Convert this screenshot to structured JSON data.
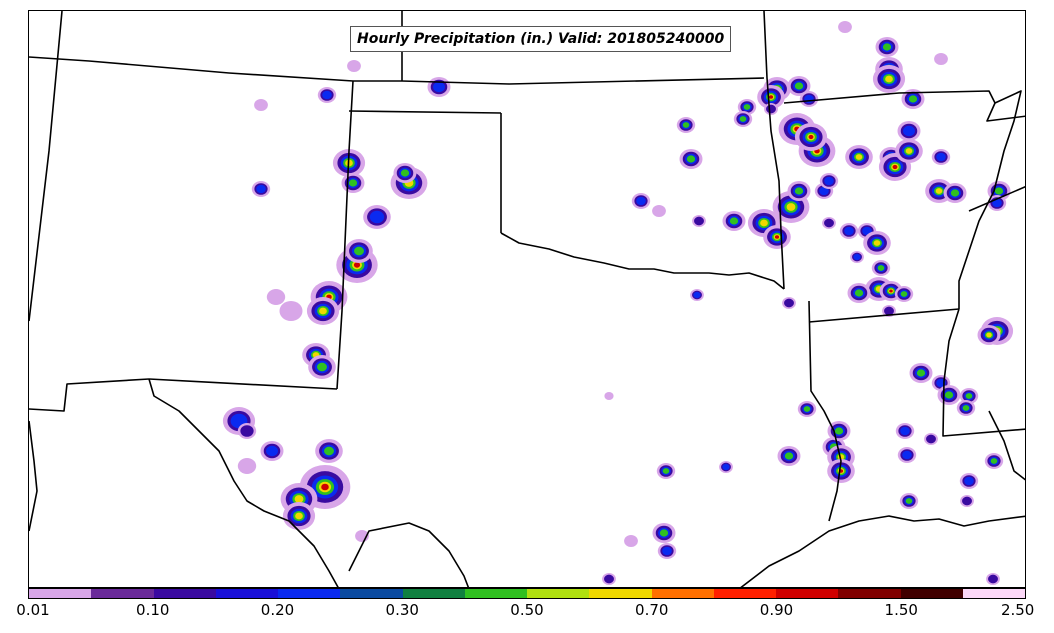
{
  "title": "Hourly Precipitation (in.) Valid: 201805240000",
  "colorbar": {
    "colors": [
      "#d8a6e8",
      "#6a2a9a",
      "#3a0aa0",
      "#1a10d8",
      "#0a2af0",
      "#0a4aa0",
      "#108040",
      "#30c020",
      "#b0e010",
      "#f0d800",
      "#ff7000",
      "#ff2000",
      "#d00000",
      "#800000",
      "#400000",
      "#fcd8f8"
    ],
    "tick_labels": [
      "0.01",
      "0.10",
      "0.20",
      "0.30",
      "0.50",
      "0.70",
      "0.90",
      "1.50",
      "2.50"
    ]
  },
  "precip_legend": {
    "light": "#d8a6e8",
    "moderate": "#3a0aa0",
    "blue": "#0a2af0",
    "green": "#30c020",
    "yellow": "#f0d800",
    "red": "#d00000",
    "dark": "#600000",
    "white": "#ffffff"
  }
}
